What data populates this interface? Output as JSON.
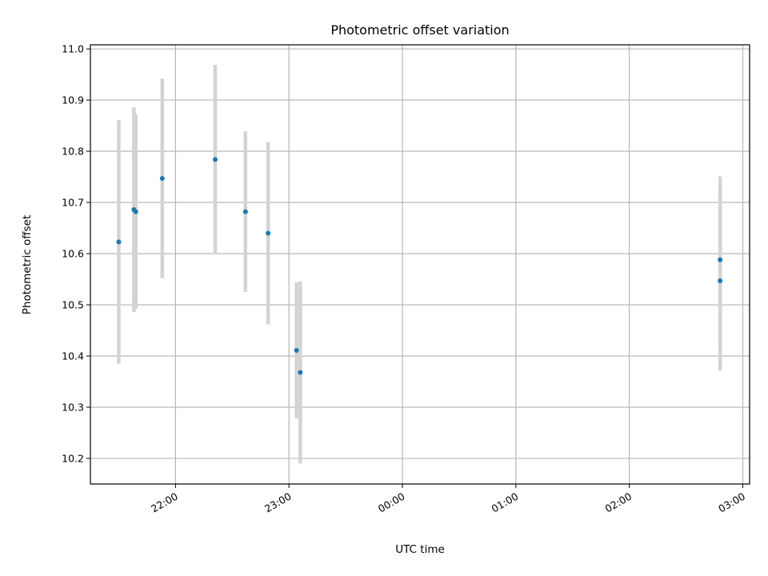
{
  "chart_data": {
    "type": "scatter",
    "title": "Photometric offset variation",
    "xlabel": "UTC time",
    "ylabel": "Photometric offset",
    "x_tick_labels": [
      "22:00",
      "23:00",
      "00:00",
      "01:00",
      "02:00",
      "03:00"
    ],
    "x_tick_hours": [
      22,
      23,
      24,
      25,
      26,
      27
    ],
    "xlim_hours": [
      21.25,
      27.06
    ],
    "ylim": [
      10.15,
      11.008
    ],
    "y_ticks": [
      10.2,
      10.3,
      10.4,
      10.5,
      10.6,
      10.7,
      10.8,
      10.9,
      11.0
    ],
    "grid": true,
    "marker_color": "#1f77b4",
    "errorbar_color": "#d3d3d3",
    "points": [
      {
        "t": "21:30",
        "y": 10.623,
        "err": 0.238
      },
      {
        "t": "21:38",
        "y": 10.686,
        "err": 0.2
      },
      {
        "t": "21:39",
        "y": 10.682,
        "err": 0.19
      },
      {
        "t": "21:53",
        "y": 10.747,
        "err": 0.195
      },
      {
        "t": "22:21",
        "y": 10.784,
        "err": 0.185
      },
      {
        "t": "22:37",
        "y": 10.682,
        "err": 0.157
      },
      {
        "t": "22:49",
        "y": 10.64,
        "err": 0.178
      },
      {
        "t": "23:04",
        "y": 10.411,
        "err": 0.133
      },
      {
        "t": "23:06",
        "y": 10.368,
        "err": 0.178
      },
      {
        "t": "02:48",
        "y": 10.588,
        "err": 0.163
      },
      {
        "t": "02:48",
        "y": 10.547,
        "err": 0.175
      }
    ]
  }
}
